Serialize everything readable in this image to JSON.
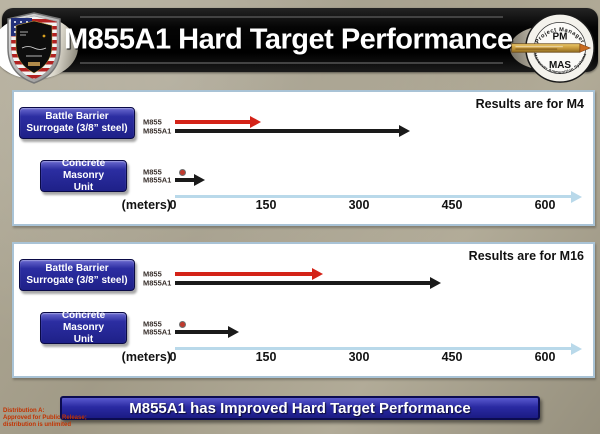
{
  "slide": {
    "title": "M855A1 Hard Target Performance",
    "banner": "M855A1 has Improved Hard Target Performance",
    "distribution_lines": [
      "Distribution A:",
      "Approved for Public Release;",
      "distribution is unlimited"
    ]
  },
  "seal": {
    "ring_top": "Project Manager",
    "ring_bottom": "Maneuver Ammunition Systems",
    "top": "PM",
    "bottom": "MAS"
  },
  "chart_data": [
    {
      "type": "bar",
      "orientation": "horizontal-arrow-ranges",
      "note": "Results are for M4",
      "axis_label": "(meters)",
      "unit": "meters",
      "ticks": [
        "0",
        "150",
        "300",
        "450",
        "600"
      ],
      "xlim": [
        0,
        660
      ],
      "grid": false,
      "groups": [
        {
          "label_lines": [
            "Battle Barrier",
            "Surrogate (3/8” steel)"
          ],
          "series": [
            {
              "name": "M855",
              "value_m": 140,
              "marker": "arrow",
              "color": "#d42318"
            },
            {
              "name": "M855A1",
              "value_m": 380,
              "marker": "arrow",
              "color": "#1a1a1a"
            }
          ]
        },
        {
          "label_lines": [
            "Concrete Masonry",
            "Unit"
          ],
          "series": [
            {
              "name": "M855",
              "value_m": 15,
              "marker": "dot",
              "color": "#c03a2e"
            },
            {
              "name": "M855A1",
              "value_m": 50,
              "marker": "arrow",
              "color": "#1a1a1a"
            }
          ]
        }
      ]
    },
    {
      "type": "bar",
      "orientation": "horizontal-arrow-ranges",
      "note": "Results are for M16",
      "axis_label": "(meters)",
      "unit": "meters",
      "ticks": [
        "0",
        "150",
        "300",
        "450",
        "600"
      ],
      "xlim": [
        0,
        660
      ],
      "grid": false,
      "groups": [
        {
          "label_lines": [
            "Battle Barrier",
            "Surrogate (3/8” steel)"
          ],
          "series": [
            {
              "name": "M855",
              "value_m": 240,
              "marker": "arrow",
              "color": "#d42318"
            },
            {
              "name": "M855A1",
              "value_m": 430,
              "marker": "arrow",
              "color": "#1a1a1a"
            }
          ]
        },
        {
          "label_lines": [
            "Concrete Masonry",
            "Unit"
          ],
          "series": [
            {
              "name": "M855",
              "value_m": 15,
              "marker": "dot",
              "color": "#c03a2e"
            },
            {
              "name": "M855A1",
              "value_m": 105,
              "marker": "arrow",
              "color": "#1a1a1a"
            }
          ]
        }
      ]
    }
  ],
  "colors": {
    "background": "#aba48f",
    "title_bar": "#000000",
    "title_text": "#ffffff",
    "panel_border": "#a9c3d6",
    "group_button_blue": "#2c2ea2",
    "banner_blue": "#2a2aa2",
    "m855_red": "#d42318",
    "m855a1_black": "#1a1a1a",
    "axis_blue": "#b9d9ea",
    "distribution_red": "#c33200"
  }
}
